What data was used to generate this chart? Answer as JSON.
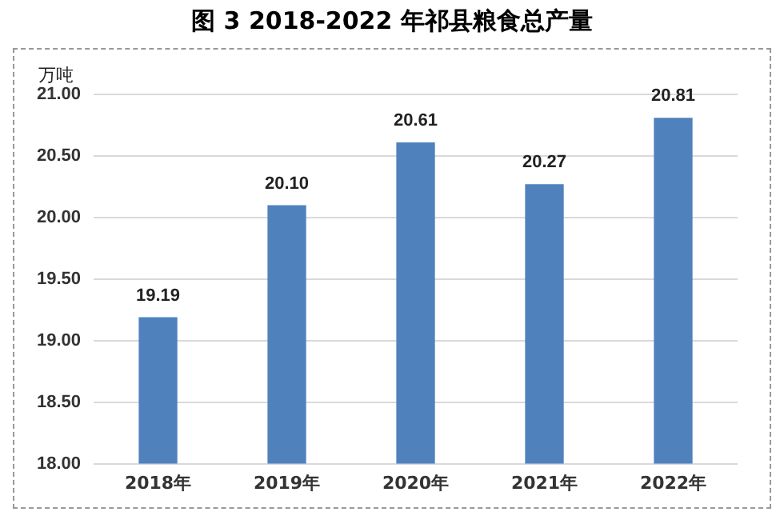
{
  "chart_data": {
    "type": "bar",
    "title": "图 3 2018-2022 年祁县粮食总产量",
    "ylabel": "万吨",
    "categories": [
      "2018年",
      "2019年",
      "2020年",
      "2021年",
      "2022年"
    ],
    "values": [
      19.19,
      20.1,
      20.61,
      20.27,
      20.81
    ],
    "value_labels": [
      "19.19",
      "20.10",
      "20.61",
      "20.27",
      "20.81"
    ],
    "color": "#4f81bd",
    "ylim": [
      18,
      21
    ],
    "yticks": [
      {
        "value": 18,
        "label": "18.00"
      },
      {
        "value": 18.5,
        "label": "18.50"
      },
      {
        "value": 19,
        "label": "19.00"
      },
      {
        "value": 19.5,
        "label": "19.50"
      },
      {
        "value": 20,
        "label": "20.00"
      },
      {
        "value": 20.5,
        "label": "20.50"
      },
      {
        "value": 21,
        "label": "21.00"
      }
    ],
    "grid": "y",
    "legend": false
  }
}
